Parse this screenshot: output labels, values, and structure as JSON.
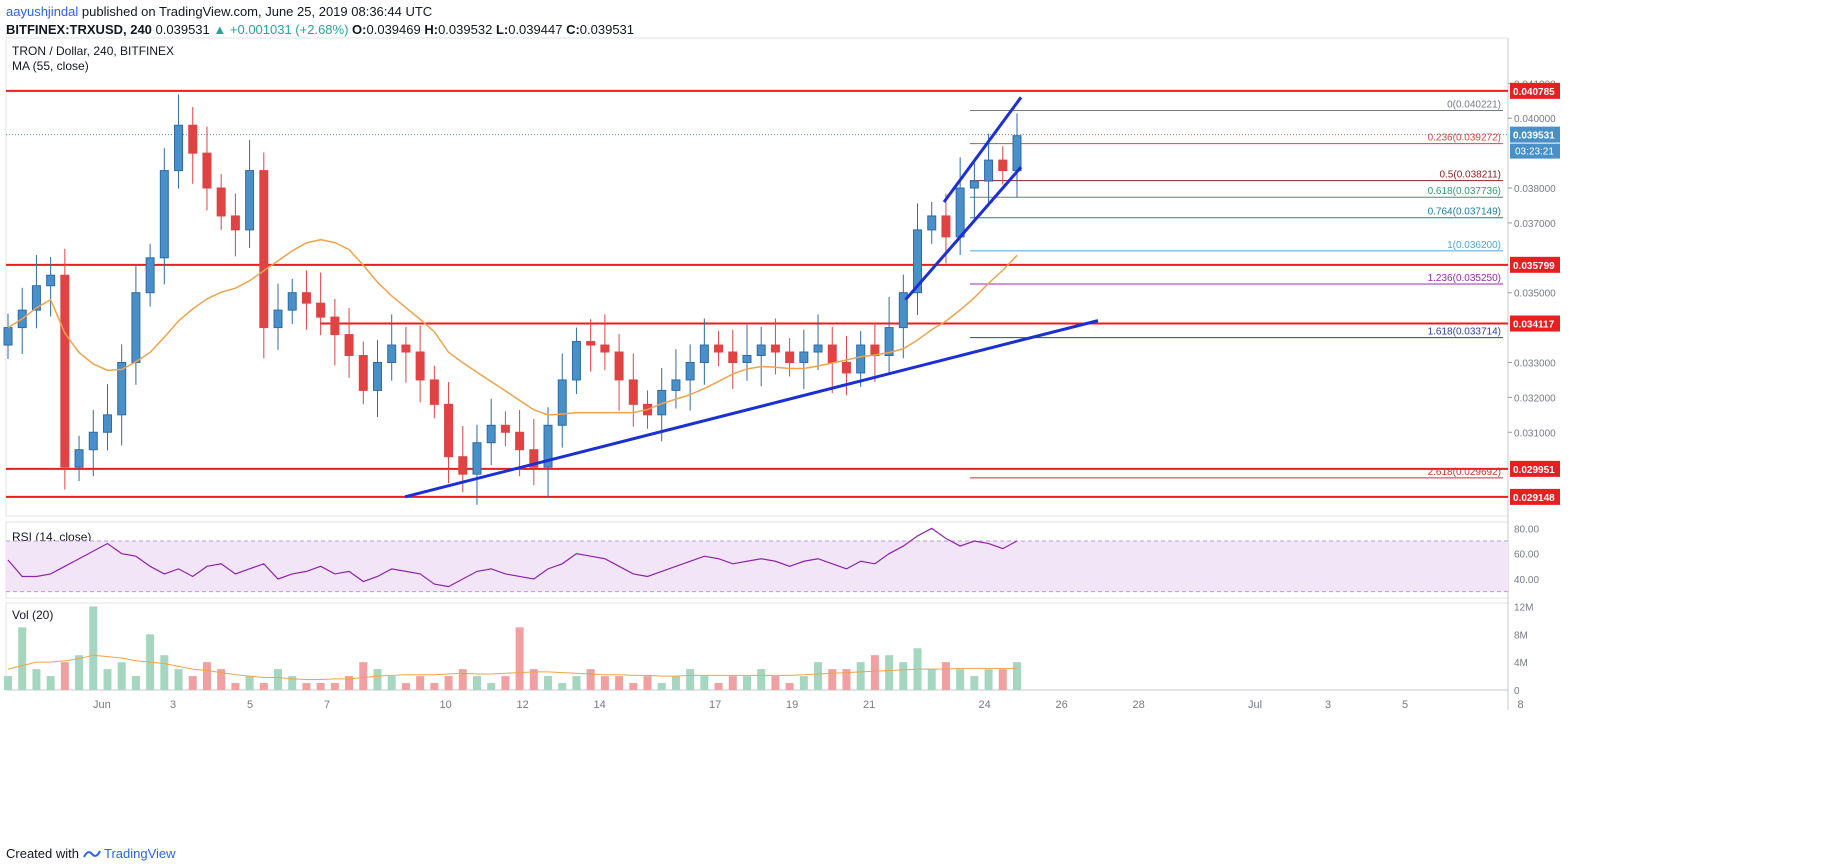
{
  "header": {
    "author": "aayushjindal",
    "published": "published on TradingView.com, June 25, 2019 08:36:44 UTC",
    "symbol": "BITFINEX:TRXUSD, 240",
    "last": "0.039531",
    "change": "▲ +0.001031 (+2.68%)",
    "o_label": "O:",
    "o_val": "0.039469",
    "h_label": "H:",
    "h_val": "0.039532",
    "l_label": "L:",
    "l_val": "0.039447",
    "c_label": "C:",
    "c_val": "0.039531"
  },
  "footer": {
    "created": "Created with",
    "brand": "TradingView"
  },
  "colors": {
    "up": "#7ab8b8",
    "up_fill": "#4a90c8",
    "down": "#e04343",
    "ma": "#f0a34a",
    "hline": "#e91e1e",
    "trend": "#1a2fd6",
    "rsi": "#8e24aa",
    "vol_up": "#a5d6c0",
    "vol_down": "#f0a0a0"
  },
  "chart_data": [
    {
      "type": "line",
      "title": "TRON / Dollar, 240, BITFINEX",
      "indicator": "MA (55, close)",
      "yaxis_ticks": [
        "0.041000",
        "0.040000",
        "0.038000",
        "0.037000",
        "0.035000",
        "0.033000",
        "0.032000",
        "0.031000"
      ],
      "xaxis_ticks": [
        "Jun",
        "3",
        "5",
        "7",
        "10",
        "12",
        "14",
        "17",
        "19",
        "21",
        "24",
        "26",
        "28",
        "Jul",
        "3",
        "5",
        "8"
      ],
      "ylim": [
        0.0286,
        0.0423
      ],
      "current_price_label": "0.039531",
      "countdown_label": "03:23:21",
      "horizontal_levels": [
        {
          "value": 0.040785,
          "label": "0.040785"
        },
        {
          "value": 0.035799,
          "label": "0.035799"
        },
        {
          "value": 0.034117,
          "label": "0.034117"
        },
        {
          "value": 0.029951,
          "label": "0.029951"
        },
        {
          "value": 0.029148,
          "label": "0.029148"
        }
      ],
      "fibonacci_levels": [
        {
          "ratio": "0",
          "value": 0.040221,
          "label": "0(0.040221)",
          "color": "#787b86"
        },
        {
          "ratio": "0.236",
          "value": 0.039272,
          "label": "0.236(0.039272)",
          "color": "#e04343"
        },
        {
          "ratio": "0.5",
          "value": 0.038211,
          "label": "0.5(0.038211)",
          "color": "#8d2222"
        },
        {
          "ratio": "0.618",
          "value": 0.037736,
          "label": "0.618(0.037736)",
          "color": "#2e9e6e"
        },
        {
          "ratio": "0.764",
          "value": 0.037149,
          "label": "0.764(0.037149)",
          "color": "#1a7fa0"
        },
        {
          "ratio": "1",
          "value": 0.0362,
          "label": "1(0.036200)",
          "color": "#4aa8d8"
        },
        {
          "ratio": "1.236",
          "value": 0.03525,
          "label": "1.236(0.035250)",
          "color": "#9c27b0"
        },
        {
          "ratio": "1.618",
          "value": 0.033714,
          "label": "1.618(0.033714)",
          "color": "#303f9f"
        },
        {
          "ratio": "2.618",
          "value": 0.029692,
          "label": "2.618(0.029692)",
          "color": "#d32f2f"
        }
      ],
      "trendlines": [
        {
          "from": [
            "Jun 9",
            0.02915
          ],
          "to": [
            "Jun 27",
            0.0342
          ]
        },
        {
          "from": [
            "Jun 22",
            0.0348
          ],
          "to": [
            "Jun 25",
            0.0386
          ]
        },
        {
          "from": [
            "Jun 23",
            0.0376
          ],
          "to": [
            "Jun 25",
            0.0406
          ]
        }
      ],
      "close_series": [
        0.034,
        0.0345,
        0.0352,
        0.0355,
        0.03,
        0.0305,
        0.031,
        0.0315,
        0.033,
        0.035,
        0.036,
        0.0385,
        0.0398,
        0.039,
        0.038,
        0.0372,
        0.0368,
        0.0385,
        0.034,
        0.0345,
        0.035,
        0.0347,
        0.0343,
        0.0338,
        0.0332,
        0.0322,
        0.033,
        0.0335,
        0.0333,
        0.0325,
        0.0318,
        0.0303,
        0.0298,
        0.0307,
        0.0312,
        0.031,
        0.0305,
        0.03,
        0.0312,
        0.0325,
        0.0336,
        0.0335,
        0.0333,
        0.0325,
        0.0318,
        0.0315,
        0.0322,
        0.0325,
        0.033,
        0.0335,
        0.0333,
        0.033,
        0.0332,
        0.0335,
        0.0333,
        0.033,
        0.0333,
        0.0335,
        0.033,
        0.0327,
        0.0335,
        0.0332,
        0.034,
        0.035,
        0.0368,
        0.0372,
        0.0366,
        0.038,
        0.0382,
        0.0388,
        0.0385,
        0.0395
      ]
    },
    {
      "type": "line",
      "title": "RSI (14, close)",
      "yaxis_ticks": [
        "80.00",
        "60.00",
        "40.00"
      ],
      "ylim": [
        25,
        85
      ],
      "bands": [
        30,
        70
      ],
      "values": [
        55,
        42,
        42,
        44,
        50,
        56,
        62,
        68,
        60,
        58,
        50,
        44,
        48,
        42,
        50,
        52,
        44,
        48,
        52,
        40,
        44,
        46,
        50,
        44,
        46,
        38,
        42,
        48,
        46,
        44,
        36,
        34,
        40,
        46,
        48,
        44,
        42,
        40,
        48,
        52,
        60,
        58,
        56,
        50,
        44,
        42,
        46,
        50,
        54,
        58,
        56,
        52,
        54,
        56,
        54,
        50,
        54,
        56,
        52,
        48,
        54,
        52,
        60,
        66,
        74,
        80,
        72,
        66,
        70,
        68,
        64,
        70
      ]
    },
    {
      "type": "bar",
      "title": "Vol (20)",
      "yaxis_ticks": [
        "12M",
        "8M",
        "4M",
        "0"
      ],
      "ylim": [
        0,
        12.5
      ],
      "values": [
        2,
        9,
        3,
        2,
        4,
        5,
        12,
        3,
        4,
        2,
        8,
        5,
        3,
        2,
        4,
        3,
        1,
        2,
        1,
        3,
        2,
        1,
        1,
        1,
        2,
        4,
        3,
        2,
        1,
        2,
        1,
        2,
        3,
        2,
        1,
        2,
        9,
        3,
        2,
        1,
        2,
        3,
        2,
        2,
        1,
        2,
        1,
        2,
        3,
        2,
        1,
        2,
        2,
        3,
        2,
        1,
        2,
        4,
        3,
        3,
        4,
        5,
        5,
        4,
        6,
        3,
        4,
        3,
        2,
        3,
        3,
        4
      ],
      "ma_values": [
        3,
        3.5,
        4,
        4,
        4.2,
        4.5,
        5,
        4.8,
        4.6,
        4.2,
        4,
        3.8,
        3.4,
        3,
        2.8,
        2.5,
        2.2,
        2,
        1.8,
        1.8,
        1.6,
        1.5,
        1.5,
        1.6,
        1.6,
        1.8,
        2,
        2.1,
        2.2,
        2.2,
        2.2,
        2.3,
        2.4,
        2.3,
        2.3,
        2.4,
        2.5,
        2.6,
        2.6,
        2.5,
        2.4,
        2.3,
        2.2,
        2.2,
        2.1,
        2.1,
        2,
        2,
        2.1,
        2.1,
        2.1,
        2.1,
        2.1,
        2.1,
        2.1,
        2.1,
        2.2,
        2.3,
        2.4,
        2.5,
        2.6,
        2.7,
        2.8,
        2.9,
        3,
        3,
        3,
        3.1,
        3.1,
        3.1,
        3.1,
        3.1
      ]
    }
  ]
}
